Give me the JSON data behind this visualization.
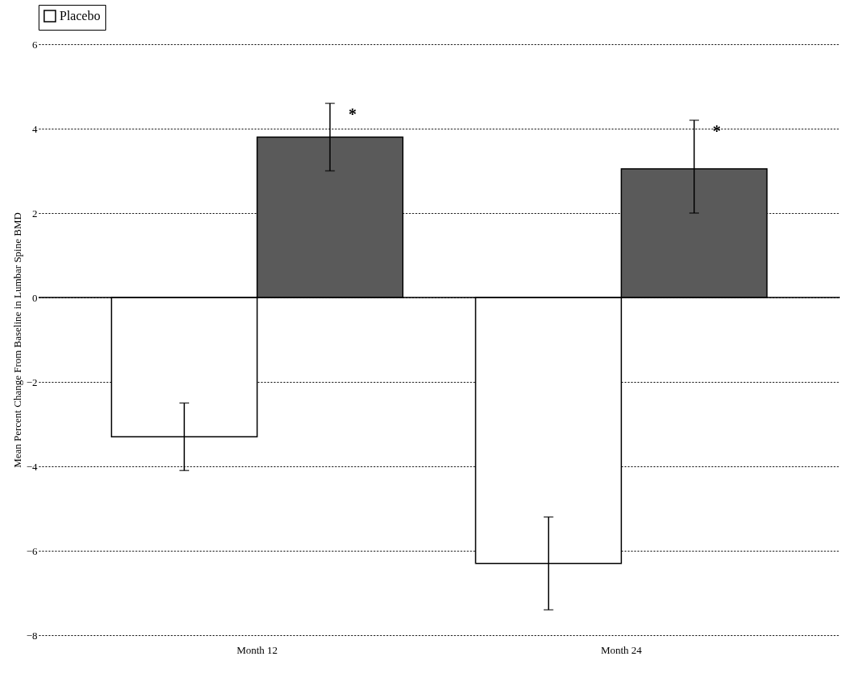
{
  "chart_data": {
    "type": "bar",
    "ylabel": "Mean Percent Change From Baseline in Lumbar Spine BMD",
    "categories": [
      "Month 12",
      "Month 24"
    ],
    "series": [
      {
        "name": "Placebo",
        "color": "#ffffff",
        "values": [
          -3.3,
          -6.3
        ],
        "errors": [
          [
            -4.1,
            -2.5
          ],
          [
            -7.4,
            -5.2
          ]
        ]
      },
      {
        "color": "#5a5a5a",
        "values": [
          3.8,
          3.05
        ],
        "errors": [
          [
            3.0,
            4.6
          ],
          [
            2.0,
            4.2
          ]
        ]
      }
    ],
    "ylim": [
      -8,
      6
    ],
    "yticks": [
      -8,
      -6,
      -4,
      -2,
      0,
      2,
      4,
      6
    ],
    "grid": "y",
    "legend": "top",
    "annotations": [
      "*",
      "*"
    ]
  }
}
